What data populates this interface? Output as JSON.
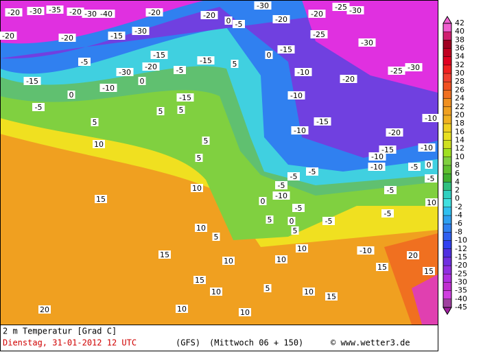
{
  "map_labels": [
    -20,
    -30,
    -35,
    -20,
    -30,
    -40,
    -20,
    -20,
    -30,
    -5,
    -20,
    -20,
    -15,
    -30,
    -5,
    -30,
    -20,
    -15,
    -5,
    -15,
    0,
    5,
    0,
    -15,
    -20,
    -25,
    -30,
    -20,
    -25,
    -30,
    -25,
    -30,
    -20,
    -10,
    -15,
    -10,
    0,
    0,
    -15,
    -5,
    5,
    5,
    5,
    -10,
    -15,
    -20,
    -10,
    -10,
    -10,
    -15,
    -10,
    10,
    5,
    5,
    -5,
    -5,
    -10,
    -5,
    -10,
    0,
    10,
    15,
    -5,
    -5,
    -5,
    0,
    10,
    10,
    5,
    5,
    0,
    5,
    -5,
    10,
    15,
    10,
    -10,
    15,
    20,
    15,
    10,
    15,
    10,
    10,
    5,
    10,
    15,
    10,
    20,
    -5,
    -5
  ],
  "legend": {
    "scale": [
      {
        "value": 42,
        "color": "#f060d0"
      },
      {
        "value": 40,
        "color": "#d02070"
      },
      {
        "value": 38,
        "color": "#a00020"
      },
      {
        "value": 36,
        "color": "#c00020"
      },
      {
        "value": 34,
        "color": "#e00020"
      },
      {
        "value": 32,
        "color": "#f02020"
      },
      {
        "value": 30,
        "color": "#f04030"
      },
      {
        "value": 28,
        "color": "#f05020"
      },
      {
        "value": 26,
        "color": "#f07020"
      },
      {
        "value": 24,
        "color": "#f09020"
      },
      {
        "value": 22,
        "color": "#f0a020"
      },
      {
        "value": 20,
        "color": "#f0b020"
      },
      {
        "value": 18,
        "color": "#f0d020"
      },
      {
        "value": 16,
        "color": "#e8e020"
      },
      {
        "value": 14,
        "color": "#d0e020"
      },
      {
        "value": 12,
        "color": "#a0e020"
      },
      {
        "value": 10,
        "color": "#80d040"
      },
      {
        "value": 8,
        "color": "#60c030"
      },
      {
        "value": 6,
        "color": "#40b030"
      },
      {
        "value": 4,
        "color": "#30c080"
      },
      {
        "value": 2,
        "color": "#30d0c0"
      },
      {
        "value": 0,
        "color": "#40e0e0"
      },
      {
        "value": -2,
        "color": "#30c0f0"
      },
      {
        "value": -4,
        "color": "#30a0f0"
      },
      {
        "value": -6,
        "color": "#3080f0"
      },
      {
        "value": -8,
        "color": "#3060f0"
      },
      {
        "value": -10,
        "color": "#3040f0"
      },
      {
        "value": -12,
        "color": "#5030e0"
      },
      {
        "value": -15,
        "color": "#7030e0"
      },
      {
        "value": -20,
        "color": "#9030e0"
      },
      {
        "value": -25,
        "color": "#b030e0"
      },
      {
        "value": -30,
        "color": "#c030d0"
      },
      {
        "value": -35,
        "color": "#d040e0"
      },
      {
        "value": -40,
        "color": "#a040a0"
      },
      {
        "value": -45,
        "color": "#a020a0"
      }
    ]
  },
  "footer": {
    "variable": "2 m Temperatur [Grad C]",
    "date": "Dienstag, 31-01-2012  12 UTC",
    "model": "(GFS)",
    "valid": "(Mittwoch 06 + 150)",
    "source": "© www.wetter3.de"
  }
}
